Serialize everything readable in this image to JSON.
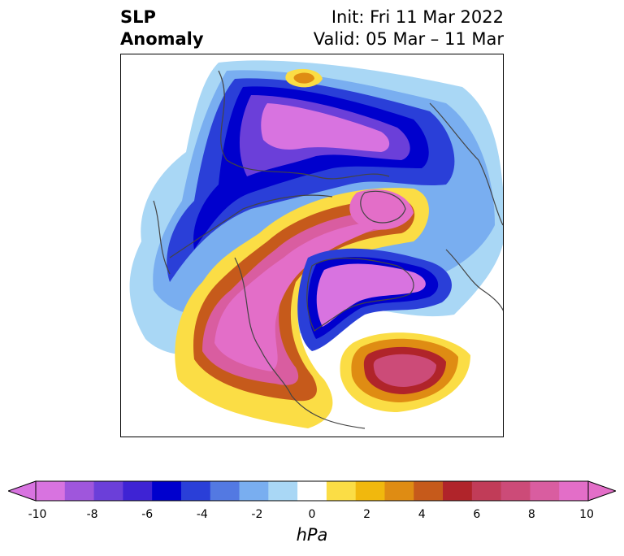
{
  "header": {
    "title_line1": "SLP",
    "title_line2": "Anomaly",
    "init": "Init: Fri 11 Mar 2022",
    "valid": "Valid: 05 Mar – 11 Mar"
  },
  "map": {
    "projection": "polar stereographic (north pole)",
    "fields": [
      {
        "name": "negative-anomaly-north",
        "min_level": -10
      },
      {
        "name": "positive-anomaly-west-north-america",
        "max_level": 10
      },
      {
        "name": "negative-anomaly-greenland",
        "min_level": -10
      },
      {
        "name": "positive-anomaly-north-atlantic",
        "max_level": 8
      }
    ]
  },
  "colorbar": {
    "units": "hPa",
    "ticks": [
      "-10",
      "-8",
      "-6",
      "-4",
      "-2",
      "0",
      "2",
      "4",
      "6",
      "8",
      "10"
    ],
    "levels": [
      -10,
      -9,
      -8,
      -7,
      -6,
      -5,
      -4,
      -3,
      -2,
      -1,
      1,
      2,
      3,
      4,
      5,
      6,
      7,
      8,
      9,
      10
    ],
    "colors": [
      "#d873e0",
      "#9f56dc",
      "#6b3fd9",
      "#3e23d4",
      "#0000cd",
      "#2a3fd8",
      "#5379e2",
      "#79aef0",
      "#a9d7f5",
      "#ffffff",
      "#fbdd45",
      "#f1b80d",
      "#df8c13",
      "#c65a1b",
      "#b0242a",
      "#c13c58",
      "#cc4b78",
      "#d95da0",
      "#e36ec8"
    ],
    "extend": "both"
  }
}
